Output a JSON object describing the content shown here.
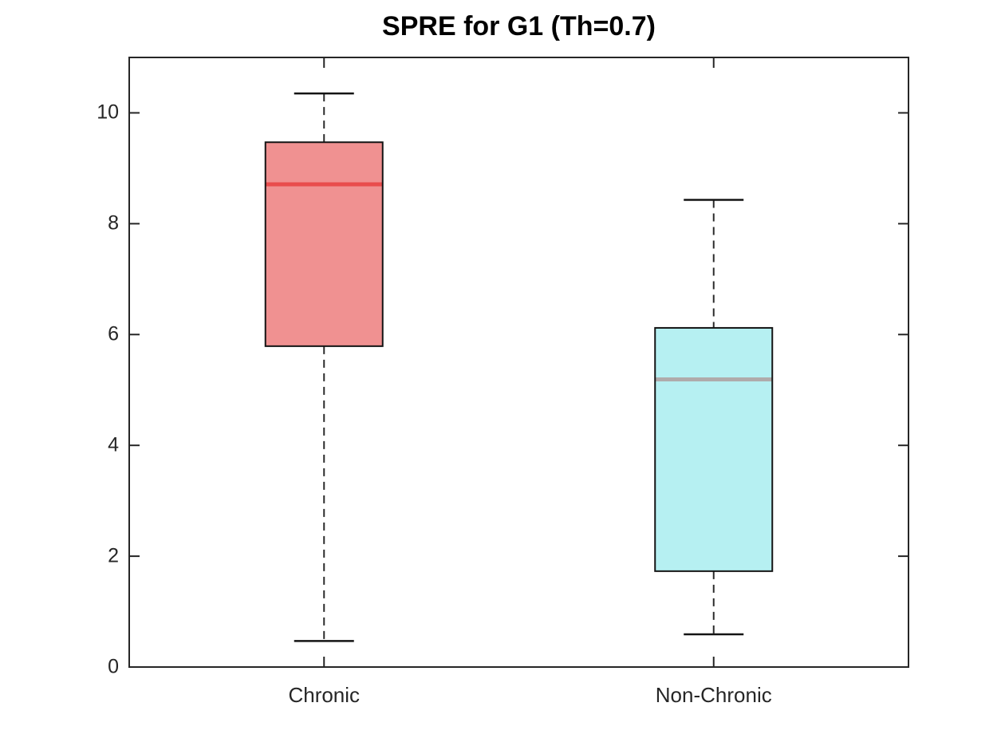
{
  "chart_data": {
    "type": "boxplot",
    "title": "SPRE for G1 (Th=0.7)",
    "categories": [
      "Chronic",
      "Non-Chronic"
    ],
    "xlabel": "",
    "ylabel": "",
    "ylim": [
      0,
      11
    ],
    "yticks": [
      0,
      2,
      4,
      6,
      8,
      10
    ],
    "grid": false,
    "legend": "none",
    "series": [
      {
        "name": "Chronic",
        "whisker_low": 0.47,
        "q1": 5.79,
        "median": 8.71,
        "q3": 9.47,
        "whisker_high": 10.35,
        "outliers": [],
        "box_fill": "#F09191",
        "median_color": "#E94C4C"
      },
      {
        "name": "Non-Chronic",
        "whisker_low": 0.59,
        "q1": 1.73,
        "median": 5.19,
        "q3": 6.12,
        "whisker_high": 8.43,
        "outliers": [],
        "box_fill": "#B6F0F2",
        "median_color": "#AFABAB"
      }
    ],
    "colors": {
      "axis": "#262626",
      "box_edge": "#141414",
      "whisker": "#2b2b2b",
      "background": "#ffffff",
      "text": "#262626",
      "title_text": "#000000"
    }
  }
}
